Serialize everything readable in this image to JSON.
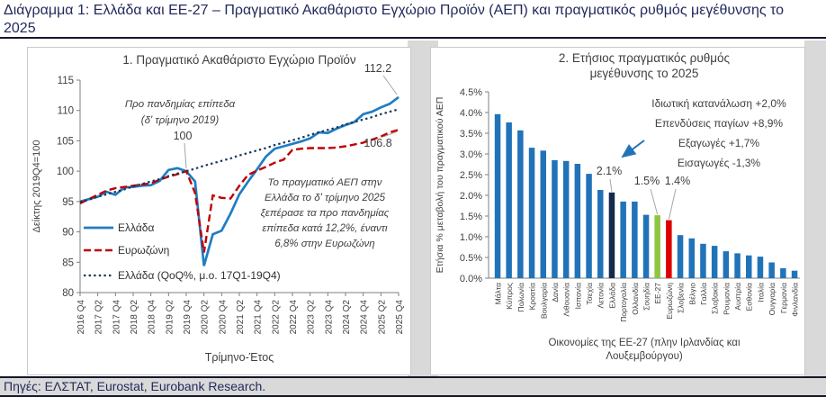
{
  "page": {
    "title": "Διάγραμμα 1: Ελλάδα και ΕΕ-27 – Πραγματικό Ακαθάριστο Εγχώριο Προϊόν (ΑΕΠ) και πραγματικός ρυθμός μεγέθυνσης το 2025",
    "sources": "Πηγές: ΕΛΣΤΑΤ, Eurostat, Eurobank Research.",
    "title_color": "#232A5C"
  },
  "chart_data": [
    {
      "type": "line",
      "title": "1. Πραγματικό Ακαθάριστο Εγχώριο Προϊόν",
      "xlabel": "Τρίμηνο-Έτος",
      "ylabel": "Δείκτης 2019Q4=100",
      "ylim": [
        80,
        115
      ],
      "ytick_step": 5,
      "grid": false,
      "legend_position": "inside-left",
      "xtick_labels": [
        "2016 Q4",
        "2017 Q2",
        "2017 Q4",
        "2018 Q2",
        "2018 Q4",
        "2019 Q2",
        "2019 Q4",
        "2020 Q2",
        "2020 Q4",
        "2021 Q2",
        "2021 Q4",
        "2022 Q2",
        "2022 Q4",
        "2023 Q2",
        "2023 Q4",
        "2024 Q2",
        "2024 Q4",
        "2025 Q2",
        "2025 Q4"
      ],
      "series": [
        {
          "name": "Ελλάδα",
          "color": "#1F7DC4",
          "style": "solid",
          "values": [
            95.0,
            95.4,
            95.8,
            96.6,
            96.1,
            97.3,
            97.4,
            97.6,
            97.7,
            98.4,
            100.2,
            100.5,
            100.0,
            98.3,
            84.4,
            89.6,
            90.2,
            93.0,
            96.2,
            98.3,
            100.3,
            102.4,
            103.7,
            104.1,
            104.5,
            104.9,
            105.4,
            106.4,
            106.3,
            107.0,
            107.6,
            108.1,
            109.4,
            109.8,
            110.5,
            111.1,
            112.2
          ]
        },
        {
          "name": "Ευρωζώνη",
          "color": "#C00000",
          "style": "dashed",
          "values": [
            94.7,
            95.4,
            96.1,
            96.8,
            97.2,
            97.4,
            97.6,
            97.8,
            98.0,
            98.6,
            99.1,
            99.5,
            100.0,
            96.4,
            86.6,
            96.0,
            95.6,
            95.5,
            97.6,
            99.4,
            100.1,
            100.7,
            101.4,
            101.9,
            103.5,
            103.7,
            103.8,
            103.8,
            103.8,
            103.9,
            104.1,
            104.4,
            104.7,
            105.2,
            105.7,
            106.4,
            106.8
          ]
        },
        {
          "name": "Ελλάδα (QoQ%, μ.ο. 17Q1-19Q4)",
          "color": "#17365D",
          "style": "dotted",
          "values": [
            94.9,
            95.3,
            95.8,
            96.2,
            96.6,
            97.0,
            97.5,
            97.9,
            98.3,
            98.7,
            99.2,
            99.6,
            100.0,
            100.4,
            100.9,
            101.3,
            101.7,
            102.1,
            102.6,
            103.0,
            103.4,
            103.8,
            104.3,
            104.7,
            105.1,
            105.5,
            106.0,
            106.4,
            106.8,
            107.2,
            107.7,
            108.1,
            108.5,
            108.9,
            109.4,
            109.8,
            110.2
          ]
        }
      ],
      "annotations": {
        "pre_pandemic_lines": [
          "Προ πανδημίας επίπεδα",
          "(δ' τρίμηνο 2019)"
        ],
        "label_100": "100",
        "end_label_greece": "112.2",
        "end_label_eurozone": "106.8",
        "note_lines": [
          "Το πραγματικό ΑΕΠ στην",
          "Ελλάδα το δ' τρίμηνο 2025",
          "ξεπέρασε τα προ πανδημίας",
          "επίπεδα κατά 12,2%, έναντι",
          "6,8% στην Ευρωζώνη"
        ]
      }
    },
    {
      "type": "bar",
      "title_lines": [
        "2. Ετήσιος πραγματικός ρυθμός",
        "μεγέθυνσης  το 2025"
      ],
      "xlabel_lines": [
        "Οικονομίες της ΕΕ-27 (πλην Ιρλανδίας και",
        "Λουξεμβούργου)"
      ],
      "ylabel": "Ετήσια % μεταβολή του πραγματικού ΑΕΠ",
      "ylim": [
        0,
        4.5
      ],
      "ytick_labels": [
        "0.0%",
        "0.5%",
        "1.0%",
        "1.5%",
        "2.0%",
        "2.5%",
        "3.0%",
        "3.5%",
        "4.0%",
        "4.5%"
      ],
      "grid": false,
      "categories": [
        "Μάλτα",
        "Κύπρος",
        "Πολωνία",
        "Κροατία",
        "Βουλγαρία",
        "Δανία",
        "Λιθουανία",
        "Ισπανία",
        "Τσεχία",
        "Λετονία",
        "Ελλάδα",
        "Πορτογαλία",
        "Ολλανδία",
        "Σουηδία",
        "ΕΕ-27",
        "Ευρωζώνη",
        "Σλοβενία",
        "Βέλγιο",
        "Γαλλία",
        "Σλοβακία",
        "Ρουμανία",
        "Αυστρία",
        "Εσθονία",
        "Ιταλία",
        "Ουγγαρία",
        "Γερμανία",
        "Φινλανδία"
      ],
      "values": [
        3.96,
        3.76,
        3.57,
        3.15,
        3.08,
        2.85,
        2.83,
        2.76,
        2.52,
        2.13,
        2.07,
        1.85,
        1.85,
        1.53,
        1.52,
        1.4,
        1.04,
        0.96,
        0.83,
        0.78,
        0.65,
        0.6,
        0.55,
        0.52,
        0.38,
        0.24,
        0.18
      ],
      "bar_color": "#2173B9",
      "highlights": {
        "Ελλάδα": "#16294F",
        "ΕΕ-27": "#8DC63F",
        "Ευρωζώνη": "#DD0000"
      },
      "data_labels": [
        {
          "category": "Ελλάδα",
          "text": "2.1%"
        },
        {
          "category": "ΕΕ-27",
          "text": "1.5%"
        },
        {
          "category": "Ευρωζώνη",
          "text": "1.4%"
        }
      ],
      "annotation_lines": [
        "Ιδιωτική κατανάλωση +2,0%",
        "Επενδύσεις παγίων +8,9%",
        "Εξαγωγές +1,7%",
        "Εισαγωγές -1,3%"
      ],
      "annotation_arrow_color": "#2173B9"
    }
  ]
}
